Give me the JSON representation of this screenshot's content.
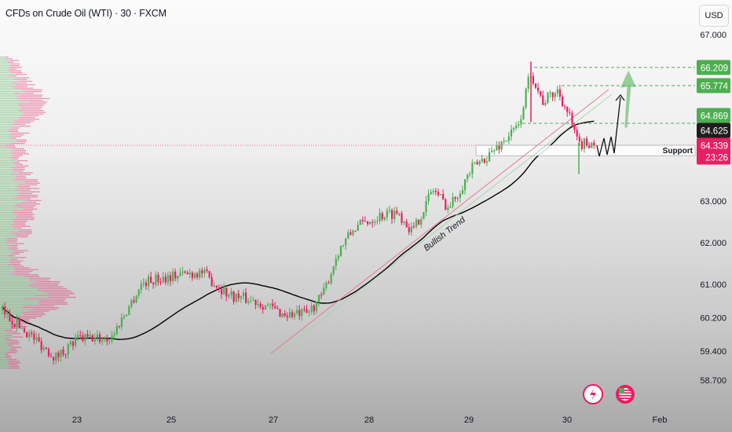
{
  "header": {
    "title": "CFDs on Crude Oil (WTI) · 30 · FXCM",
    "currency": "USD"
  },
  "chart_data": {
    "type": "candlestick",
    "title": "CFDs on Crude Oil (WTI) · 30 · FXCM",
    "y_axis": {
      "unit": "USD",
      "ticks": [
        {
          "label": "67.000",
          "value": 67.0
        },
        {
          "label": "63.000",
          "value": 63.0
        },
        {
          "label": "62.000",
          "value": 62.0
        },
        {
          "label": "61.000",
          "value": 61.0
        },
        {
          "label": "60.200",
          "value": 60.2
        },
        {
          "label": "59.400",
          "value": 59.4
        },
        {
          "label": "58.700",
          "value": 58.7
        }
      ]
    },
    "x_axis": {
      "ticks": [
        {
          "label": "23",
          "day": 23
        },
        {
          "label": "25",
          "day": 25
        },
        {
          "label": "27",
          "day": 27
        },
        {
          "label": "28",
          "day": 28
        },
        {
          "label": "29",
          "day": 29
        },
        {
          "label": "30",
          "day": 30
        },
        {
          "label": "Feb",
          "day": 31
        }
      ]
    },
    "price_path": [
      [
        21.37,
        60.38
      ],
      [
        21.87,
        59.9
      ],
      [
        22.53,
        59.25
      ],
      [
        23.03,
        59.7
      ],
      [
        23.7,
        59.7
      ],
      [
        24.37,
        61.04
      ],
      [
        24.95,
        61.2
      ],
      [
        25.57,
        61.3
      ],
      [
        26.11,
        60.75
      ],
      [
        26.72,
        60.57
      ],
      [
        27.1,
        60.28
      ],
      [
        27.34,
        60.28
      ],
      [
        27.51,
        60.75
      ],
      [
        27.67,
        61.8
      ],
      [
        27.84,
        62.36
      ],
      [
        28.08,
        62.64
      ],
      [
        28.28,
        62.74
      ],
      [
        28.43,
        62.26
      ],
      [
        28.63,
        63.3
      ],
      [
        28.79,
        62.83
      ],
      [
        29.02,
        63.77
      ],
      [
        29.26,
        64.25
      ],
      [
        29.5,
        64.81
      ],
      [
        29.62,
        66.13
      ],
      [
        29.74,
        65.38
      ],
      [
        29.9,
        65.66
      ],
      [
        30.02,
        65.0
      ],
      [
        30.11,
        64.34
      ],
      [
        30.28,
        64.43
      ]
    ],
    "moving_average": {
      "color": "#000000"
    },
    "price_tags": [
      {
        "label": "66.209",
        "value": 66.209,
        "color": "#4caf50"
      },
      {
        "label": "65.774",
        "value": 65.774,
        "color": "#4caf50"
      },
      {
        "label": "64.869",
        "value": 64.869,
        "color": "#4caf50"
      },
      {
        "label": "64.625",
        "value": 64.625,
        "color": "#1e1e1e"
      },
      {
        "label": "64.339",
        "value": 64.339,
        "color": "#e91e63",
        "countdown": "23:26"
      }
    ],
    "target_levels": [
      66.209,
      65.774,
      64.869
    ],
    "last_price": 64.339,
    "annotations": {
      "support_label": "Support",
      "support_zone": [
        64.09,
        64.34
      ],
      "trend_label": "Bullish Trend"
    },
    "colors": {
      "up": "#4caf50",
      "down": "#e91e63",
      "target": "#4caf50",
      "trendline": "#e07a9a"
    },
    "icons": [
      "lightning-event-icon",
      "us-flag-event-icon"
    ]
  }
}
